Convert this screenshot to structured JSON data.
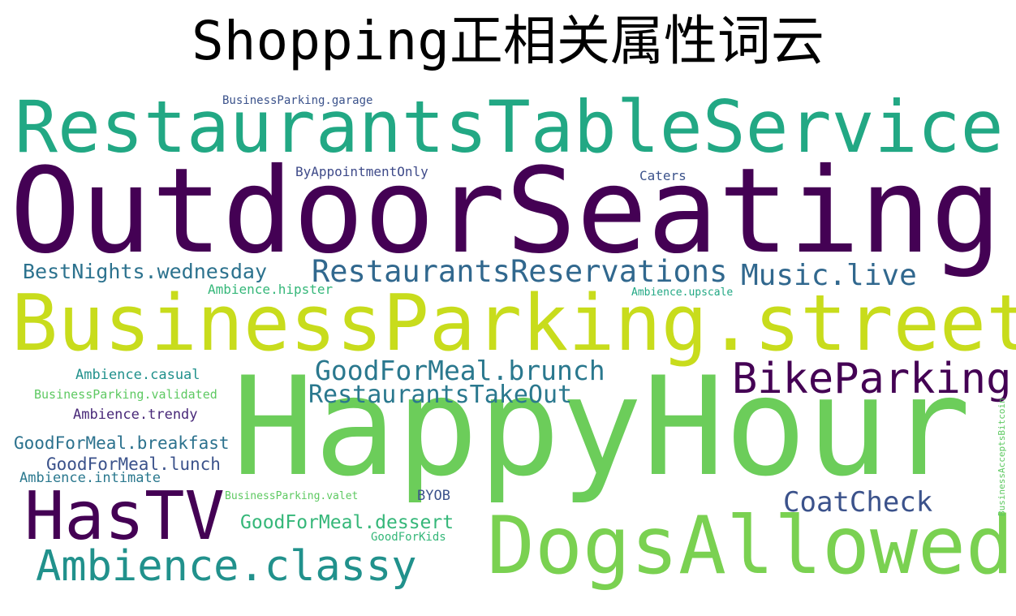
{
  "title": "Shopping正相关属性词云",
  "colors": {
    "dark_purple": "#440154",
    "indigo": "#3b528b",
    "blue": "#31688e",
    "teal": "#21918c",
    "green_teal": "#22a884",
    "sea_green": "#35b779",
    "light_green": "#5ec962",
    "lime": "#7ad151",
    "yellow_green": "#c8dc1c"
  },
  "words": [
    {
      "text": "OutdoorSeating",
      "color": "#440154"
    },
    {
      "text": "HappyHour",
      "color": "#6ccd5a"
    },
    {
      "text": "RestaurantsTableService",
      "color": "#22a884"
    },
    {
      "text": "BusinessParking.street",
      "color": "#c8dc1c"
    },
    {
      "text": "DogsAllowed",
      "color": "#7ad151"
    },
    {
      "text": "HasTV",
      "color": "#440154"
    },
    {
      "text": "BikeParking",
      "color": "#440154"
    },
    {
      "text": "Ambience.classy",
      "color": "#21918c"
    },
    {
      "text": "RestaurantsReservations",
      "color": "#31688e"
    },
    {
      "text": "Music.live",
      "color": "#31688e"
    },
    {
      "text": "GoodForMeal.brunch",
      "color": "#2a788e"
    },
    {
      "text": "RestaurantsTakeOut",
      "color": "#2a788e"
    },
    {
      "text": "CoatCheck",
      "color": "#3b528b"
    },
    {
      "text": "BestNights.wednesday",
      "color": "#2c728e"
    },
    {
      "text": "GoodForMeal.dessert",
      "color": "#35b779"
    },
    {
      "text": "GoodForMeal.breakfast",
      "color": "#2c728e"
    },
    {
      "text": "GoodForMeal.lunch",
      "color": "#3b528b"
    },
    {
      "text": "Ambience.casual",
      "color": "#21918c"
    },
    {
      "text": "Ambience.trendy",
      "color": "#482878"
    },
    {
      "text": "Ambience.intimate",
      "color": "#2a788e"
    },
    {
      "text": "BusinessParking.validated",
      "color": "#5ec962"
    },
    {
      "text": "Ambience.hipster",
      "color": "#35b779"
    },
    {
      "text": "ByAppointmentOnly",
      "color": "#3e4a89"
    },
    {
      "text": "Caters",
      "color": "#3b528b"
    },
    {
      "text": "BusinessParking.garage",
      "color": "#3b528b"
    },
    {
      "text": "Ambience.upscale",
      "color": "#22a884"
    },
    {
      "text": "BusinessParking.valet",
      "color": "#5ec962"
    },
    {
      "text": "BYOB",
      "color": "#3b528b"
    },
    {
      "text": "GoodForKids",
      "color": "#35b779"
    },
    {
      "text": "BusinessAcceptsBitcoin",
      "color": "#5ec962",
      "orientation": "vertical"
    }
  ]
}
